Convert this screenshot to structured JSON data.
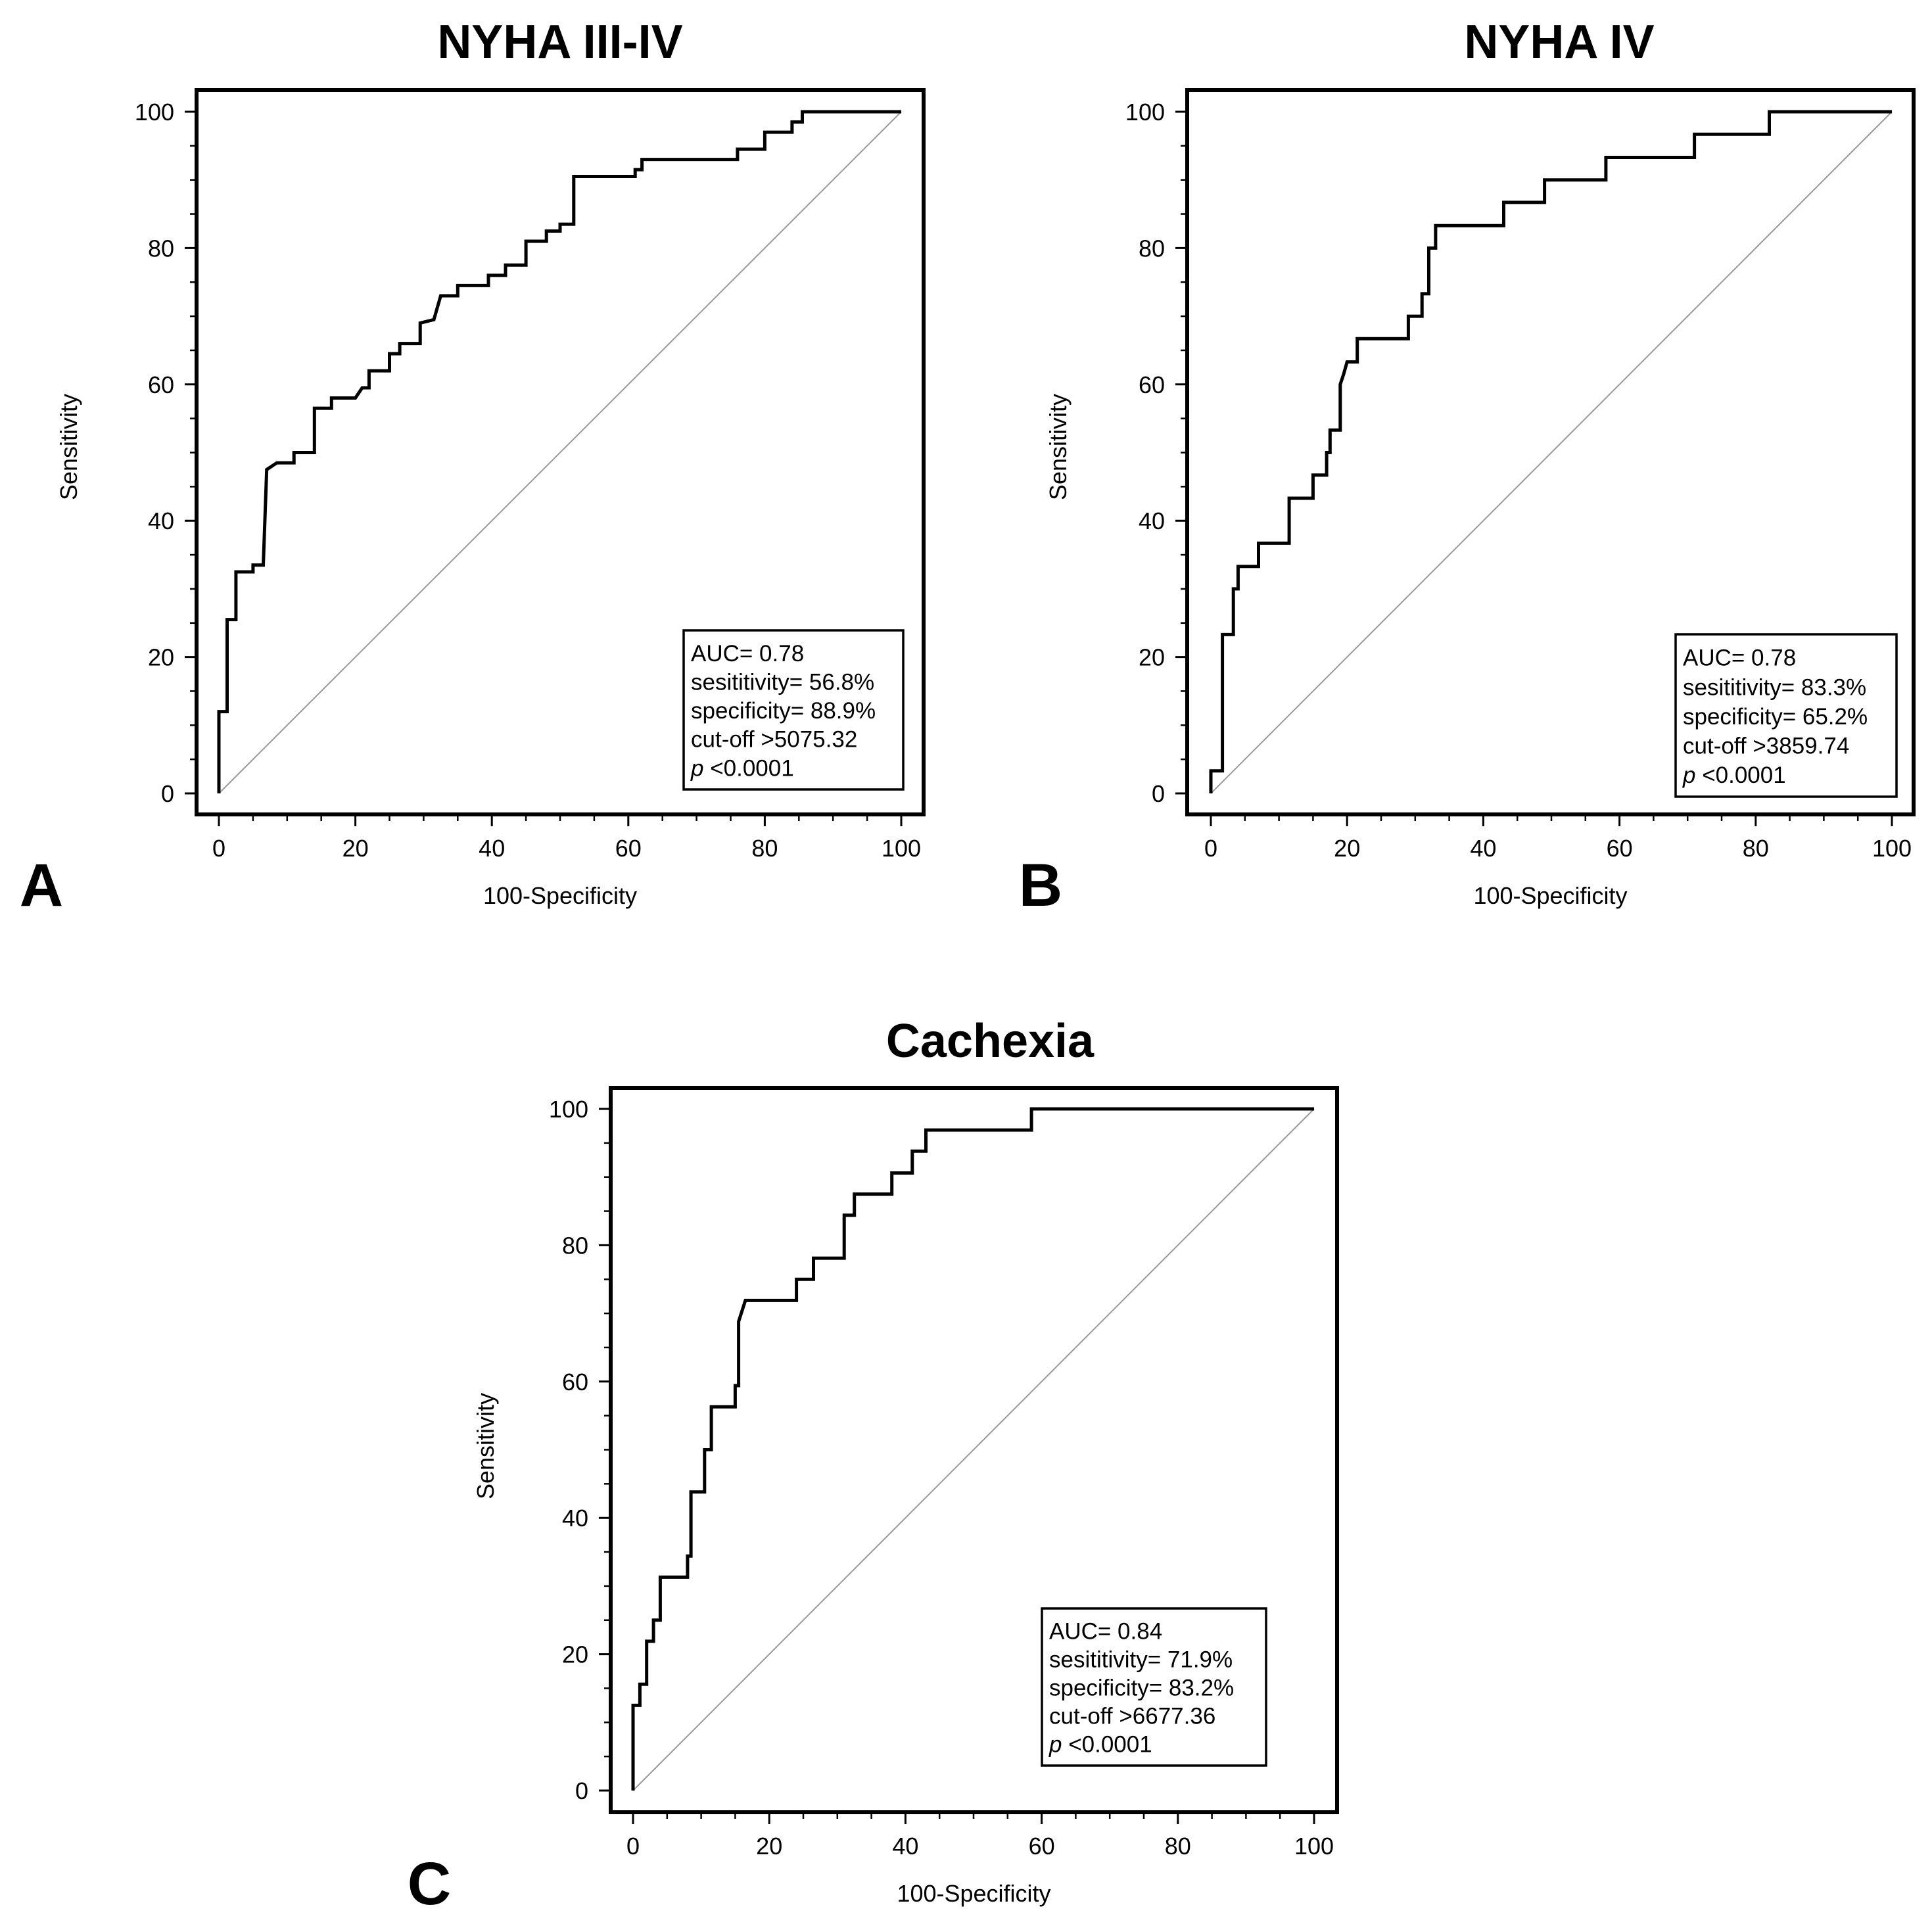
{
  "figure": {
    "panels": [
      "A",
      "B",
      "C"
    ]
  },
  "chart_data": [
    {
      "type": "line",
      "panel_letter": "A",
      "title": "NYHA III-IV",
      "xlabel": "100-Specificity",
      "ylabel": "Sensitivity",
      "xlim": [
        0,
        100
      ],
      "ylim": [
        0,
        100
      ],
      "xticks": [
        0,
        20,
        40,
        60,
        80,
        100
      ],
      "yticks": [
        0,
        20,
        40,
        60,
        80,
        100
      ],
      "grid": false,
      "reference_line": [
        [
          0,
          0
        ],
        [
          100,
          100
        ]
      ],
      "series": [
        {
          "points": [
            [
              0,
              0
            ],
            [
              0,
              12
            ],
            [
              1.2,
              12
            ],
            [
              1.2,
              25.5
            ],
            [
              2.5,
              25.5
            ],
            [
              2.5,
              32.5
            ],
            [
              5,
              32.5
            ],
            [
              5,
              33.5
            ],
            [
              6.5,
              33.5
            ],
            [
              7,
              47.5
            ],
            [
              8.5,
              48.5
            ],
            [
              11,
              48.5
            ],
            [
              11,
              50
            ],
            [
              14,
              50
            ],
            [
              14,
              56.5
            ],
            [
              16.5,
              56.5
            ],
            [
              16.5,
              58
            ],
            [
              20,
              58
            ],
            [
              21,
              59.5
            ],
            [
              22,
              59.5
            ],
            [
              22,
              62
            ],
            [
              25,
              62
            ],
            [
              25,
              64.5
            ],
            [
              26.5,
              64.5
            ],
            [
              26.5,
              66
            ],
            [
              29.5,
              66
            ],
            [
              29.5,
              69
            ],
            [
              31.5,
              69.5
            ],
            [
              32.5,
              73
            ],
            [
              35,
              73
            ],
            [
              35,
              74.5
            ],
            [
              39.5,
              74.5
            ],
            [
              39.5,
              76
            ],
            [
              42,
              76
            ],
            [
              42,
              77.5
            ],
            [
              45,
              77.5
            ],
            [
              45,
              81
            ],
            [
              48,
              81
            ],
            [
              48,
              82.5
            ],
            [
              50,
              82.5
            ],
            [
              50,
              83.5
            ],
            [
              52,
              83.5
            ],
            [
              52,
              90.5
            ],
            [
              61,
              90.5
            ],
            [
              61,
              91.5
            ],
            [
              62,
              91.5
            ],
            [
              62,
              93
            ],
            [
              76,
              93
            ],
            [
              76,
              94.5
            ],
            [
              80,
              94.5
            ],
            [
              80,
              97
            ],
            [
              84,
              97
            ],
            [
              84,
              98.5
            ],
            [
              85.5,
              98.5
            ],
            [
              85.5,
              100
            ],
            [
              100,
              100
            ]
          ]
        }
      ],
      "annotation": {
        "auc": "AUC= 0.78",
        "sensitivity": "sesititivity= 56.8%",
        "specificity": "specificity= 88.9%",
        "cutoff": "cut-off >5075.32",
        "p_label": "p",
        "p_value": " <0.0001"
      },
      "annotation_position": "bottom-right"
    },
    {
      "type": "line",
      "panel_letter": "B",
      "title": "NYHA IV",
      "xlabel": "100-Specificity",
      "ylabel": "Sensitivity",
      "xlim": [
        0,
        100
      ],
      "ylim": [
        0,
        100
      ],
      "xticks": [
        0,
        20,
        40,
        60,
        80,
        100
      ],
      "yticks": [
        0,
        20,
        40,
        60,
        80,
        100
      ],
      "grid": false,
      "reference_line": [
        [
          0,
          0
        ],
        [
          100,
          100
        ]
      ],
      "series": [
        {
          "points": [
            [
              0,
              0
            ],
            [
              0,
              3.3
            ],
            [
              1.7,
              3.3
            ],
            [
              1.7,
              23.3
            ],
            [
              3.3,
              23.3
            ],
            [
              3.3,
              30
            ],
            [
              4,
              30
            ],
            [
              4,
              33.3
            ],
            [
              7,
              33.3
            ],
            [
              7,
              36.7
            ],
            [
              11.5,
              36.7
            ],
            [
              11.5,
              43.3
            ],
            [
              15,
              43.3
            ],
            [
              15,
              46.7
            ],
            [
              17,
              46.7
            ],
            [
              17,
              50
            ],
            [
              17.5,
              50
            ],
            [
              17.5,
              53.3
            ],
            [
              19,
              53.3
            ],
            [
              19,
              60
            ],
            [
              19.5,
              61.5
            ],
            [
              20,
              63.3
            ],
            [
              21.5,
              63.3
            ],
            [
              21.5,
              66.7
            ],
            [
              29,
              66.7
            ],
            [
              29,
              70
            ],
            [
              31,
              70
            ],
            [
              31,
              73.3
            ],
            [
              32,
              73.3
            ],
            [
              32,
              80
            ],
            [
              33,
              80
            ],
            [
              33,
              83.3
            ],
            [
              43,
              83.3
            ],
            [
              43,
              86.7
            ],
            [
              49,
              86.7
            ],
            [
              49,
              90
            ],
            [
              58,
              90
            ],
            [
              58,
              93.3
            ],
            [
              71,
              93.3
            ],
            [
              71,
              96.7
            ],
            [
              82,
              96.7
            ],
            [
              82,
              100
            ],
            [
              100,
              100
            ]
          ]
        }
      ],
      "annotation": {
        "auc": "AUC= 0.78",
        "sensitivity": "sesititivity= 83.3%",
        "specificity": "specificity= 65.2%",
        "cutoff": "cut-off >3859.74",
        "p_label": "p",
        "p_value": " <0.0001"
      },
      "annotation_position": "bottom-right"
    },
    {
      "type": "line",
      "panel_letter": "C",
      "title": "Cachexia",
      "xlabel": "100-Specificity",
      "ylabel": "Sensitivity",
      "xlim": [
        0,
        100
      ],
      "ylim": [
        0,
        100
      ],
      "xticks": [
        0,
        20,
        40,
        60,
        80,
        100
      ],
      "yticks": [
        0,
        20,
        40,
        60,
        80,
        100
      ],
      "grid": false,
      "reference_line": [
        [
          0,
          0
        ],
        [
          100,
          100
        ]
      ],
      "series": [
        {
          "points": [
            [
              0,
              0
            ],
            [
              0,
              12.5
            ],
            [
              1,
              12.5
            ],
            [
              1,
              15.6
            ],
            [
              2,
              15.6
            ],
            [
              2,
              21.9
            ],
            [
              3,
              21.9
            ],
            [
              3,
              25
            ],
            [
              4,
              25
            ],
            [
              4,
              31.3
            ],
            [
              8,
              31.3
            ],
            [
              8,
              34.4
            ],
            [
              8.5,
              34.4
            ],
            [
              8.5,
              43.8
            ],
            [
              10.5,
              43.8
            ],
            [
              10.5,
              50
            ],
            [
              11.5,
              50
            ],
            [
              11.5,
              56.3
            ],
            [
              15,
              56.3
            ],
            [
              15,
              59.4
            ],
            [
              15.5,
              59.4
            ],
            [
              15.5,
              68.8
            ],
            [
              16.5,
              71.9
            ],
            [
              24,
              71.9
            ],
            [
              24,
              75
            ],
            [
              26.5,
              75
            ],
            [
              26.5,
              78.1
            ],
            [
              31,
              78.1
            ],
            [
              31,
              84.4
            ],
            [
              32.5,
              84.4
            ],
            [
              32.5,
              87.5
            ],
            [
              38,
              87.5
            ],
            [
              38,
              90.6
            ],
            [
              41,
              90.6
            ],
            [
              41,
              93.8
            ],
            [
              43,
              93.8
            ],
            [
              43,
              96.9
            ],
            [
              58.5,
              96.9
            ],
            [
              58.5,
              100
            ],
            [
              100,
              100
            ]
          ]
        }
      ],
      "annotation": {
        "auc": "AUC= 0.84",
        "sensitivity": "sesititivity= 71.9%",
        "specificity": "specificity= 83.2%",
        "cutoff": "cut-off >6677.36",
        "p_label": "p",
        "p_value": " <0.0001"
      },
      "annotation_position": "bottom-right"
    }
  ]
}
